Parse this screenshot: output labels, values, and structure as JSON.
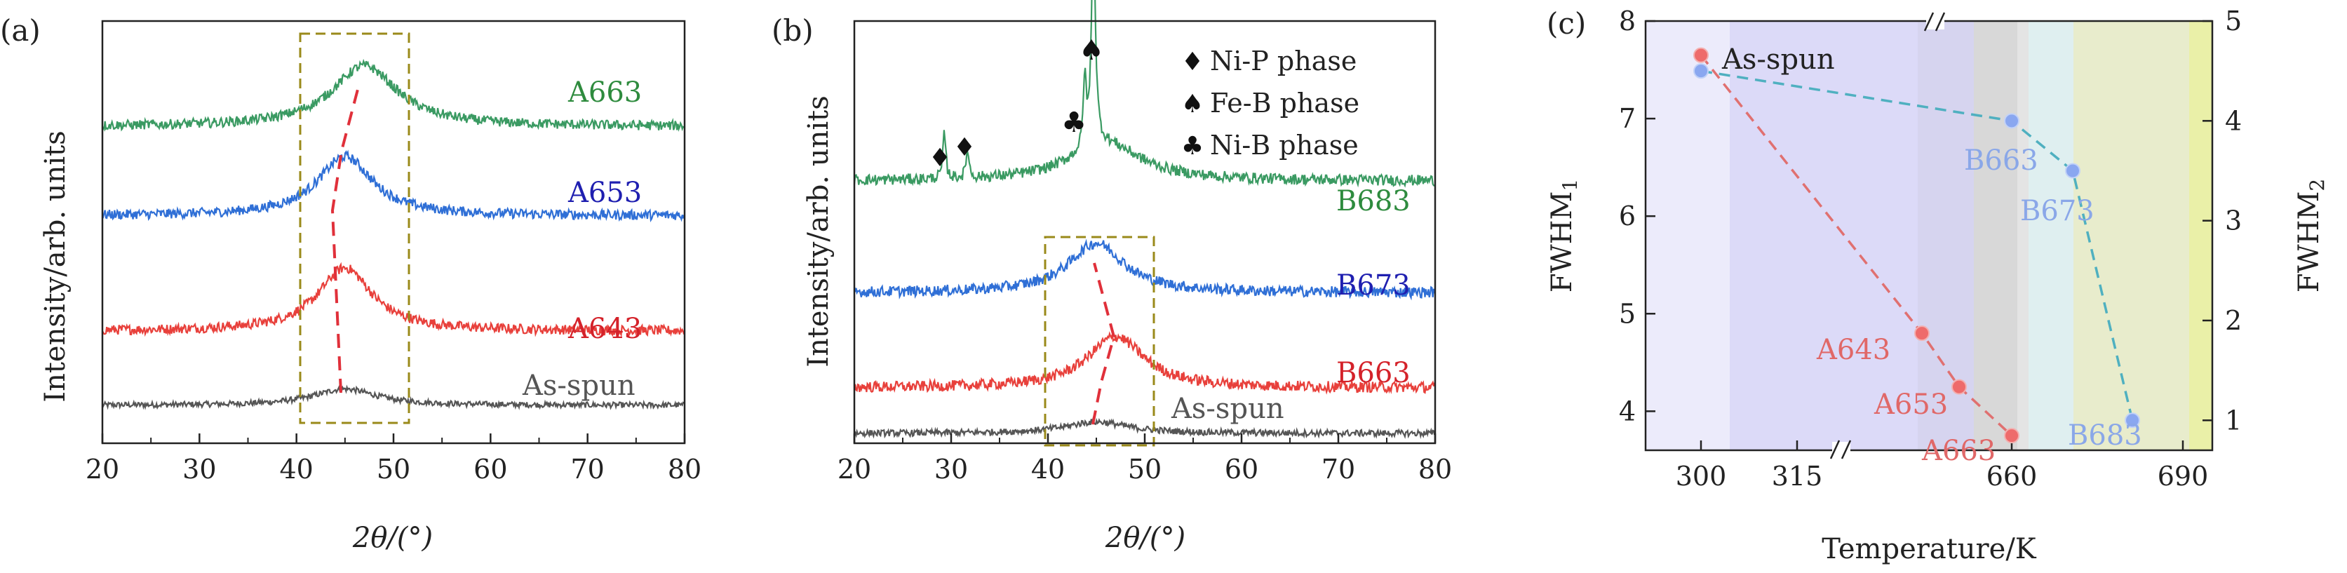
{
  "colors": {
    "gray": "#555555",
    "red": "#e8403b",
    "blue": "#2f6fd6",
    "green": "#3a9a62",
    "olive": "#9a8a1a",
    "dash_red": "#e0303a",
    "label_blue": "#1f1fb0",
    "label_red": "#d4222a",
    "label_green": "#2e8b3e",
    "label_gray": "#555555",
    "pt_red": "#ee6b6b",
    "pt_blue": "#8aa7f0",
    "txt_red": "#e06868",
    "txt_blue": "#8aa7e8",
    "dash_c_red": "#e07070",
    "dash_c_teal": "#4fb0c0"
  },
  "panels": {
    "a": {
      "tag": "(a)",
      "ylabel": "Intensity/arb. units",
      "xlabel": "2θ/(°)",
      "xticks": [
        "20",
        "30",
        "40",
        "50",
        "60",
        "70",
        "80"
      ],
      "curve_labels": [
        "A663",
        "A653",
        "A643",
        "As-spun"
      ]
    },
    "b": {
      "tag": "(b)",
      "ylabel": "Intensity/arb. units",
      "xlabel": "2θ/(°)",
      "xticks": [
        "20",
        "30",
        "40",
        "50",
        "60",
        "70",
        "80"
      ],
      "curve_labels": [
        "B683",
        "B673",
        "B663",
        "As-spun"
      ],
      "legend": [
        {
          "symbol": "♦",
          "text": "Ni-P phase"
        },
        {
          "symbol": "♠",
          "text": "Fe-B phase"
        },
        {
          "symbol": "♣",
          "text": "Ni-B phase"
        }
      ],
      "peak_symbols": [
        "♦",
        "♦",
        "♣",
        "♠"
      ]
    },
    "c": {
      "tag": "(c)",
      "xlabel": "Temperature/K",
      "ylabel_left": "FWHM",
      "ylabel_left_sub": "1",
      "ylabel_right": "FWHM",
      "ylabel_right_sub": "2",
      "xticks": [
        "300",
        "315",
        "660",
        "690"
      ],
      "yticks_left": [
        "4",
        "5",
        "6",
        "7",
        "8"
      ],
      "yticks_right": [
        "1",
        "2",
        "3",
        "4",
        "5"
      ],
      "point_labels": [
        "As-spun",
        "A643",
        "A653",
        "A663",
        "B663",
        "B673",
        "B683"
      ]
    }
  },
  "chart_data": [
    {
      "type": "line",
      "title": "",
      "xlabel": "2θ/(°)",
      "ylabel": "Intensity/arb. units",
      "xlim": [
        20,
        80
      ],
      "series": [
        {
          "name": "As-spun",
          "peak_x": 45.0,
          "baseline": 0.0,
          "peak_height": 0.22,
          "fwhm": 8.0
        },
        {
          "name": "A643",
          "peak_x": 45.0,
          "baseline": 1.0,
          "peak_height": 0.85,
          "fwhm": 6.8
        },
        {
          "name": "A653",
          "peak_x": 45.0,
          "baseline": 2.55,
          "peak_height": 0.8,
          "fwhm": 6.9
        },
        {
          "name": "A663",
          "peak_x": 47.0,
          "baseline": 3.75,
          "peak_height": 0.82,
          "fwhm": 8.2
        }
      ],
      "annotations": {
        "box_x": [
          40.5,
          51.5
        ],
        "peak_trend_x": [
          45.0,
          47.0
        ]
      }
    },
    {
      "type": "line",
      "title": "",
      "xlabel": "2θ/(°)",
      "ylabel": "Intensity/arb. units",
      "xlim": [
        20,
        80
      ],
      "series": [
        {
          "name": "As-spun",
          "peak_x": 45.0,
          "baseline": 0.0,
          "peak_height": 0.14,
          "fwhm": 8.0
        },
        {
          "name": "B663",
          "peak_x": 47.0,
          "baseline": 0.55,
          "peak_height": 0.62,
          "fwhm": 7.2
        },
        {
          "name": "B673",
          "peak_x": 45.0,
          "baseline": 1.7,
          "peak_height": 0.6,
          "fwhm": 7.0
        },
        {
          "name": "B683",
          "peak_x": 44.7,
          "baseline": 3.05,
          "peak_height": 2.55,
          "fwhm": 0.5
        }
      ],
      "phase_peaks": [
        {
          "x": 29.3,
          "phase": "Ni-P phase"
        },
        {
          "x": 31.7,
          "phase": "Ni-P phase"
        },
        {
          "x": 43.8,
          "phase": "Ni-B phase"
        },
        {
          "x": 44.7,
          "phase": "Fe-B phase"
        }
      ],
      "annotations": {
        "box_x": [
          40.0,
          51.0
        ],
        "peak_trend_x": [
          45.0,
          47.0
        ]
      }
    },
    {
      "type": "scatter",
      "title": "",
      "xlabel": "Temperature/K",
      "ylabel": "FWHM1",
      "ylabel_right": "FWHM2",
      "xticks": [
        "300",
        "315",
        "660",
        "690"
      ],
      "ylim_left": [
        3.6,
        8.0
      ],
      "ylim_right": [
        0.7,
        5.0
      ],
      "series": [
        {
          "name": "FWHM1",
          "points": [
            {
              "label": "As-spun",
              "y": 7.65
            },
            {
              "label": "A643",
              "y": 4.8
            },
            {
              "label": "A653",
              "y": 4.25
            },
            {
              "label": "A663",
              "y": 3.75
            }
          ]
        },
        {
          "name": "FWHM2",
          "points": [
            {
              "label": "As-spun",
              "y": 4.5
            },
            {
              "label": "B663",
              "y": 4.0
            },
            {
              "label": "B673",
              "y": 3.5
            },
            {
              "label": "B683",
              "y": 1.0
            }
          ]
        }
      ]
    }
  ]
}
